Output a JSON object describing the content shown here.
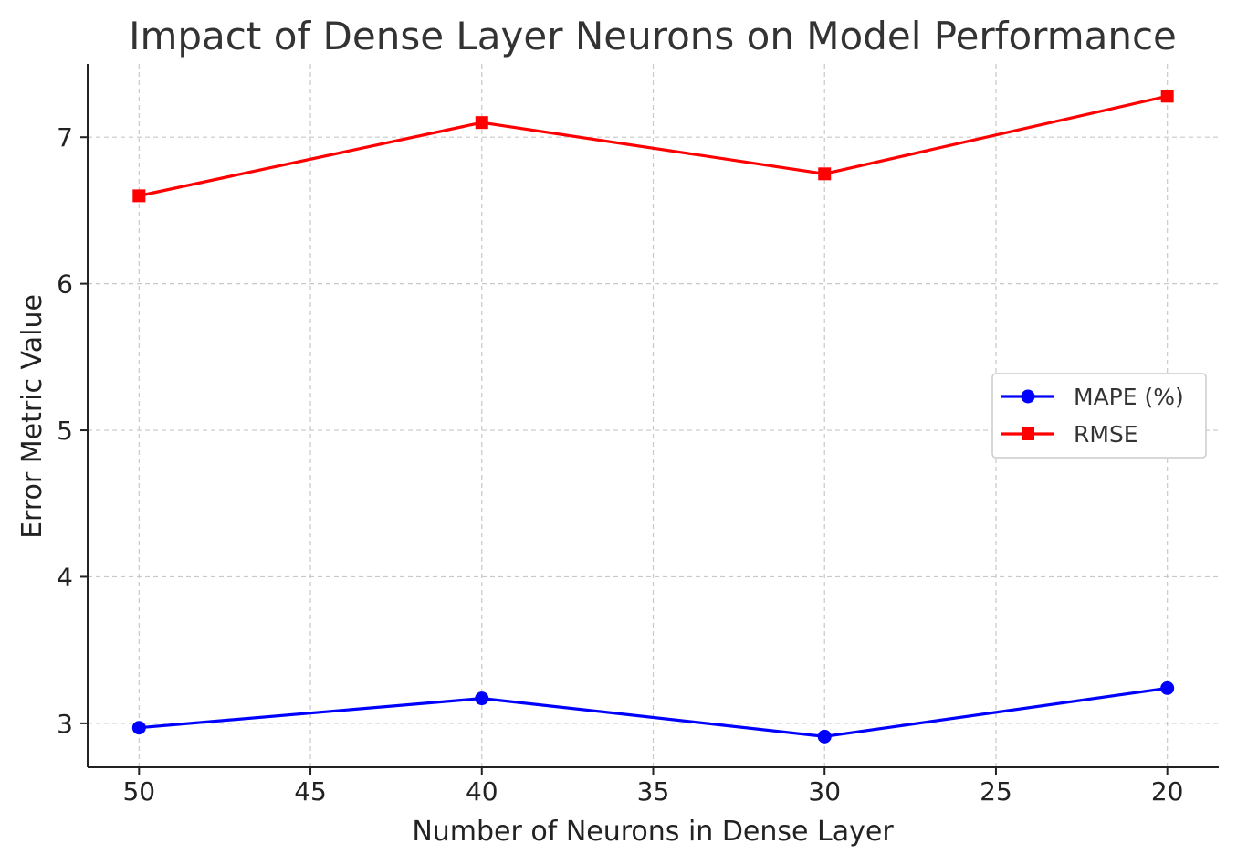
{
  "chart_data": {
    "type": "line",
    "title": "Impact of Dense Layer Neurons on Model Performance",
    "xlabel": "Number of Neurons in Dense Layer",
    "ylabel": "Error Metric Value",
    "x": [
      50,
      40,
      30,
      20
    ],
    "x_inverted": true,
    "xlim": [
      51.5,
      18.5
    ],
    "ylim": [
      2.7,
      7.5
    ],
    "x_ticks": [
      "50",
      "45",
      "40",
      "35",
      "30",
      "25",
      "20"
    ],
    "x_tick_values": [
      50,
      45,
      40,
      35,
      30,
      25,
      20
    ],
    "y_ticks": [
      "3",
      "4",
      "5",
      "6",
      "7"
    ],
    "y_tick_values": [
      3,
      4,
      5,
      6,
      7
    ],
    "grid": true,
    "legend_position": "center-right",
    "series": [
      {
        "name": "MAPE (%)",
        "values": [
          2.97,
          3.17,
          2.91,
          3.24
        ],
        "color": "#0000ff",
        "marker": "circle"
      },
      {
        "name": "RMSE",
        "values": [
          6.6,
          7.1,
          6.75,
          7.28
        ],
        "color": "#ff0000",
        "marker": "square"
      }
    ]
  }
}
